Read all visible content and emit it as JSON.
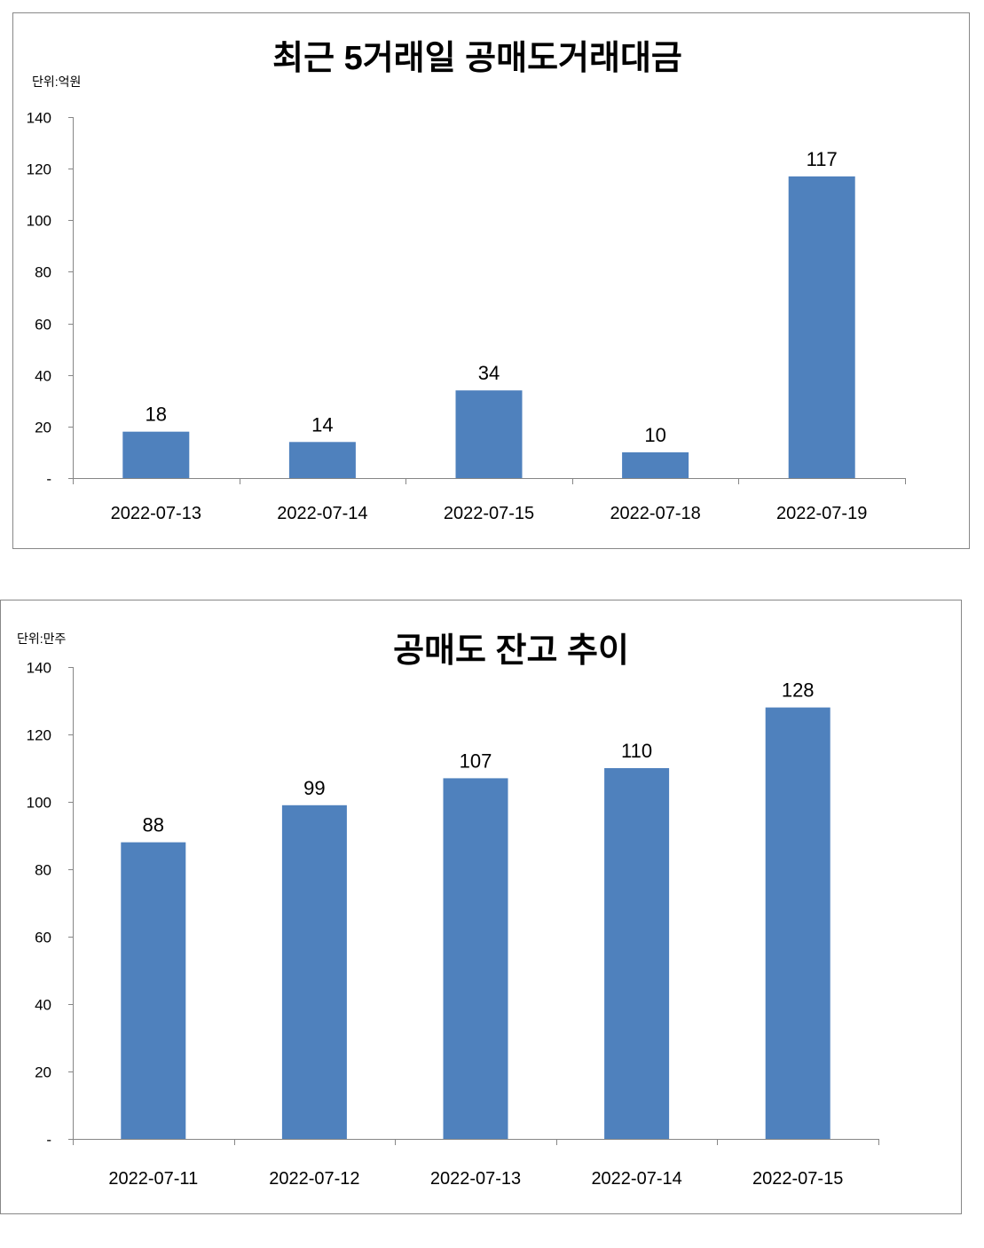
{
  "chart_data": [
    {
      "type": "bar",
      "title": "최근 5거래일 공매도거래대금",
      "unit_label": "단위:억원",
      "categories": [
        "2022-07-13",
        "2022-07-14",
        "2022-07-15",
        "2022-07-18",
        "2022-07-19"
      ],
      "values": [
        18,
        14,
        34,
        10,
        117
      ],
      "data_labels": [
        "18",
        "14",
        "34",
        "10",
        "117"
      ],
      "ylim": [
        0,
        140
      ],
      "yticks": [
        0,
        20,
        40,
        60,
        80,
        100,
        120,
        140
      ],
      "ytick_labels": [
        "-",
        "20",
        "40",
        "60",
        "80",
        "100",
        "120",
        "140"
      ],
      "grid": false,
      "bar_color": "#4F81BD"
    },
    {
      "type": "bar",
      "title": "공매도 잔고 추이",
      "unit_label": "단위:만주",
      "categories": [
        "2022-07-11",
        "2022-07-12",
        "2022-07-13",
        "2022-07-14",
        "2022-07-15"
      ],
      "values": [
        88,
        99,
        107,
        110,
        128
      ],
      "data_labels": [
        "88",
        "99",
        "107",
        "110",
        "128"
      ],
      "ylim": [
        0,
        140
      ],
      "yticks": [
        0,
        20,
        40,
        60,
        80,
        100,
        120,
        140
      ],
      "ytick_labels": [
        "-",
        "20",
        "40",
        "60",
        "80",
        "100",
        "120",
        "140"
      ],
      "grid": false,
      "bar_color": "#4F81BD"
    }
  ]
}
